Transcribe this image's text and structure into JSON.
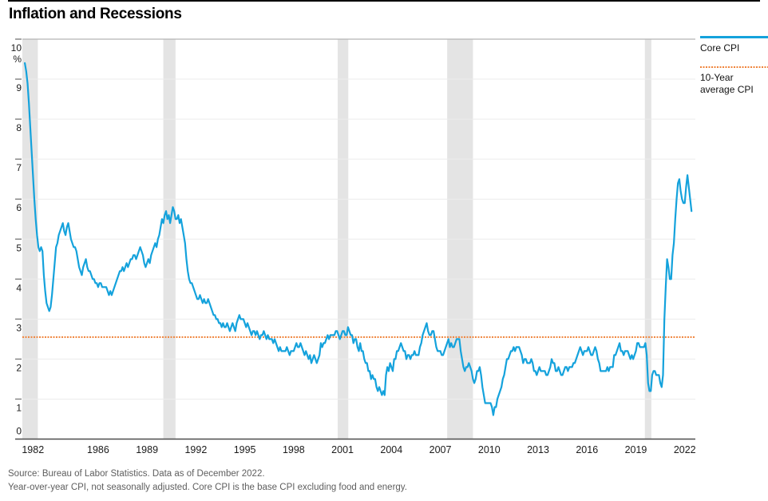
{
  "page": {
    "title": "Inflation and Recessions"
  },
  "legend": [
    {
      "label": "Core CPI",
      "style": "solid",
      "color": "#14a2dc"
    },
    {
      "label": "10-Year average CPI",
      "style": "dotted",
      "color": "#ef8339"
    }
  ],
  "footer": {
    "line1": "Source: Bureau of Labor Statistics. Data as of December 2022.",
    "line2": "Year-over-year CPI, not seasonally adjusted. Core CPI is the base CPI excluding food and energy."
  },
  "colors": {
    "core_cpi_line": "#14a2dc",
    "average_line": "#ef8339",
    "recession_band": "#e4e4e4",
    "gridline": "#ececec",
    "plot_top_border": "#b3b3b3",
    "baseline": "#4d4d4d",
    "tick": "#808080",
    "axis_label": "#1b1b1b"
  },
  "chart_data": {
    "type": "line",
    "title": "Inflation and Recessions",
    "ylabel": "%",
    "y_axis": {
      "min": 0,
      "max": 10,
      "tick_interval": 1,
      "ticks": [
        0,
        1,
        2,
        3,
        4,
        5,
        6,
        7,
        8,
        9,
        10
      ],
      "unit": "%"
    },
    "x_axis": {
      "domain": [
        1981.85,
        2023.15
      ],
      "tick_years": [
        1982,
        1986,
        1989,
        1992,
        1995,
        1998,
        2001,
        2004,
        2007,
        2010,
        2013,
        2016,
        2019,
        2022
      ],
      "tick_anchor_offset": 0.5
    },
    "recessions": {
      "note": "shaded vertical bands, decimal year ranges",
      "bands": [
        [
          1981.85,
          1982.8
        ],
        [
          1990.5,
          1991.25
        ],
        [
          2001.2,
          2001.85
        ],
        [
          2007.92,
          2009.5
        ],
        [
          2020.05,
          2020.45
        ]
      ]
    },
    "series": [
      {
        "name": "Core CPI",
        "frequency": "monthly",
        "start_year": 1982,
        "end_label": "December 2022",
        "values": [
          9.4,
          9.2,
          8.9,
          8.4,
          7.8,
          7.2,
          6.6,
          6.0,
          5.5,
          5.1,
          4.8,
          4.7,
          4.8,
          4.7,
          4.1,
          3.7,
          3.4,
          3.3,
          3.2,
          3.3,
          3.6,
          4.0,
          4.4,
          4.8,
          4.9,
          5.1,
          5.2,
          5.3,
          5.4,
          5.2,
          5.1,
          5.3,
          5.4,
          5.2,
          5.0,
          4.9,
          4.8,
          4.8,
          4.7,
          4.5,
          4.3,
          4.2,
          4.1,
          4.3,
          4.4,
          4.5,
          4.3,
          4.2,
          4.2,
          4.1,
          4.0,
          4.0,
          3.9,
          3.9,
          3.8,
          3.9,
          3.9,
          3.8,
          3.8,
          3.8,
          3.8,
          3.7,
          3.6,
          3.7,
          3.6,
          3.7,
          3.8,
          3.9,
          4.0,
          4.1,
          4.2,
          4.2,
          4.3,
          4.2,
          4.3,
          4.4,
          4.3,
          4.4,
          4.5,
          4.5,
          4.6,
          4.6,
          4.5,
          4.6,
          4.7,
          4.8,
          4.7,
          4.6,
          4.4,
          4.3,
          4.4,
          4.5,
          4.4,
          4.6,
          4.7,
          4.8,
          4.9,
          4.8,
          5.0,
          5.1,
          5.3,
          5.5,
          5.4,
          5.6,
          5.7,
          5.5,
          5.6,
          5.4,
          5.6,
          5.8,
          5.7,
          5.5,
          5.5,
          5.6,
          5.4,
          5.5,
          5.3,
          5.1,
          4.9,
          4.5,
          4.2,
          4.0,
          3.9,
          3.9,
          3.8,
          3.7,
          3.6,
          3.5,
          3.5,
          3.6,
          3.5,
          3.4,
          3.5,
          3.4,
          3.4,
          3.5,
          3.4,
          3.3,
          3.2,
          3.1,
          3.1,
          3.0,
          3.0,
          2.9,
          2.9,
          2.8,
          2.9,
          2.8,
          2.8,
          2.9,
          2.8,
          2.7,
          2.8,
          2.9,
          2.8,
          2.7,
          2.9,
          3.0,
          3.1,
          3.0,
          3.0,
          3.0,
          2.9,
          2.8,
          2.9,
          2.8,
          2.7,
          2.6,
          2.7,
          2.7,
          2.6,
          2.7,
          2.6,
          2.5,
          2.6,
          2.6,
          2.7,
          2.6,
          2.5,
          2.6,
          2.5,
          2.5,
          2.5,
          2.4,
          2.5,
          2.4,
          2.3,
          2.2,
          2.3,
          2.2,
          2.2,
          2.2,
          2.2,
          2.3,
          2.2,
          2.1,
          2.2,
          2.2,
          2.2,
          2.3,
          2.4,
          2.3,
          2.3,
          2.4,
          2.3,
          2.2,
          2.1,
          2.2,
          2.1,
          2.0,
          2.1,
          1.9,
          2.0,
          2.1,
          2.0,
          1.9,
          2.0,
          2.1,
          2.4,
          2.3,
          2.4,
          2.4,
          2.5,
          2.6,
          2.5,
          2.6,
          2.6,
          2.6,
          2.6,
          2.7,
          2.7,
          2.6,
          2.5,
          2.6,
          2.7,
          2.7,
          2.6,
          2.6,
          2.8,
          2.7,
          2.6,
          2.6,
          2.4,
          2.5,
          2.5,
          2.3,
          2.2,
          2.4,
          2.2,
          2.2,
          2.0,
          1.9,
          1.9,
          1.7,
          1.7,
          1.5,
          1.6,
          1.5,
          1.5,
          1.3,
          1.2,
          1.3,
          1.2,
          1.1,
          1.2,
          1.1,
          1.6,
          1.8,
          1.7,
          1.9,
          1.8,
          1.7,
          2.0,
          2.0,
          2.2,
          2.2,
          2.3,
          2.4,
          2.3,
          2.2,
          2.2,
          2.0,
          2.1,
          2.1,
          2.0,
          2.1,
          2.1,
          2.2,
          2.1,
          2.1,
          2.1,
          2.3,
          2.4,
          2.6,
          2.7,
          2.8,
          2.9,
          2.7,
          2.6,
          2.6,
          2.7,
          2.7,
          2.5,
          2.3,
          2.2,
          2.2,
          2.2,
          2.1,
          2.1,
          2.2,
          2.3,
          2.4,
          2.5,
          2.3,
          2.4,
          2.3,
          2.3,
          2.4,
          2.5,
          2.5,
          2.5,
          2.2,
          2.0,
          1.8,
          1.7,
          1.8,
          1.8,
          1.9,
          1.8,
          1.7,
          1.5,
          1.4,
          1.5,
          1.7,
          1.7,
          1.8,
          1.6,
          1.3,
          1.1,
          0.9,
          0.9,
          0.9,
          0.9,
          0.9,
          0.8,
          0.6,
          0.8,
          0.8,
          1.0,
          1.1,
          1.2,
          1.3,
          1.5,
          1.6,
          1.8,
          2.0,
          2.0,
          2.1,
          2.2,
          2.2,
          2.3,
          2.2,
          2.3,
          2.3,
          2.3,
          2.2,
          2.1,
          1.9,
          2.0,
          2.0,
          1.9,
          1.9,
          1.9,
          2.0,
          1.9,
          1.7,
          1.7,
          1.6,
          1.7,
          1.8,
          1.7,
          1.7,
          1.7,
          1.7,
          1.6,
          1.6,
          1.7,
          1.8,
          2.0,
          1.9,
          1.9,
          1.7,
          1.7,
          1.8,
          1.7,
          1.6,
          1.6,
          1.7,
          1.8,
          1.8,
          1.7,
          1.8,
          1.8,
          1.8,
          1.9,
          1.9,
          2.0,
          2.1,
          2.2,
          2.3,
          2.2,
          2.1,
          2.2,
          2.2,
          2.2,
          2.3,
          2.2,
          2.1,
          2.1,
          2.2,
          2.3,
          2.2,
          2.0,
          1.9,
          1.7,
          1.7,
          1.7,
          1.7,
          1.7,
          1.8,
          1.7,
          1.8,
          1.8,
          1.8,
          2.1,
          2.1,
          2.2,
          2.3,
          2.4,
          2.2,
          2.2,
          2.1,
          2.2,
          2.2,
          2.2,
          2.1,
          2.0,
          2.1,
          2.0,
          2.1,
          2.2,
          2.4,
          2.4,
          2.3,
          2.3,
          2.3,
          2.3,
          2.4,
          2.1,
          1.4,
          1.2,
          1.2,
          1.6,
          1.7,
          1.7,
          1.6,
          1.6,
          1.6,
          1.4,
          1.3,
          1.6,
          3.0,
          3.8,
          4.5,
          4.3,
          4.0,
          4.0,
          4.6,
          4.9,
          5.5,
          6.0,
          6.4,
          6.5,
          6.2,
          6.0,
          5.9,
          5.9,
          6.3,
          6.6,
          6.3,
          6.0,
          5.7
        ]
      },
      {
        "name": "10-Year average CPI",
        "type": "horizontal-reference",
        "value": 2.55
      }
    ]
  }
}
